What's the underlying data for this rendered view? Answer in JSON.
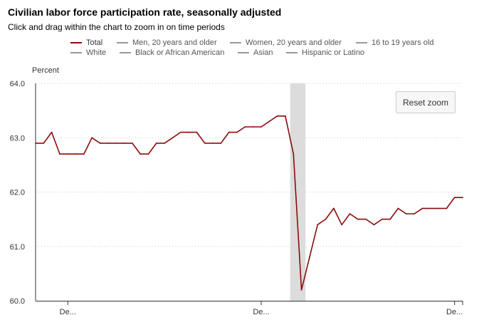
{
  "header": {
    "title": "Civilian labor force participation rate, seasonally adjusted",
    "subtitle": "Click and drag within the chart to zoom in on time periods"
  },
  "legend": {
    "items": [
      {
        "label": "Total",
        "color": "#8b0c0c",
        "active": true
      },
      {
        "label": "Men, 20 years and older",
        "color": "#999999",
        "active": false
      },
      {
        "label": "Women, 20 years and older",
        "color": "#999999",
        "active": false
      },
      {
        "label": "16 to 19 years old",
        "color": "#999999",
        "active": false
      },
      {
        "label": "White",
        "color": "#999999",
        "active": false
      },
      {
        "label": "Black or African American",
        "color": "#999999",
        "active": false
      },
      {
        "label": "Asian",
        "color": "#999999",
        "active": false
      },
      {
        "label": "Hispanic or Latino",
        "color": "#999999",
        "active": false
      }
    ]
  },
  "controls": {
    "reset_zoom_label": "Reset zoom"
  },
  "chart_data": {
    "type": "line",
    "title": "Civilian labor force participation rate, seasonally adjusted",
    "ylabel": "Percent",
    "xlabel": "",
    "ylim": [
      60.0,
      64.0
    ],
    "yticks": [
      "60.0",
      "61.0",
      "62.0",
      "63.0",
      "64.0"
    ],
    "xtick_labels": [
      {
        "index": 4,
        "label": "De..."
      },
      {
        "index": 28,
        "label": "De..."
      },
      {
        "index": 52,
        "label": "De..."
      }
    ],
    "grid": "horizontal dotted",
    "line_color": "#8b0c0c",
    "shaded_region": {
      "x_start": 31.6,
      "x_end": 33.5,
      "color": "#dcdcdc"
    },
    "series": [
      {
        "name": "Total",
        "x": [
          0,
          1,
          2,
          3,
          4,
          5,
          6,
          7,
          8,
          9,
          10,
          11,
          12,
          13,
          14,
          15,
          16,
          17,
          18,
          19,
          20,
          21,
          22,
          23,
          24,
          25,
          26,
          27,
          28,
          29,
          30,
          31,
          32,
          33,
          34,
          35,
          36,
          37,
          38,
          39,
          40,
          41,
          42,
          43,
          44,
          45,
          46,
          47,
          48,
          49,
          50,
          51,
          52,
          53
        ],
        "values": [
          62.9,
          62.9,
          63.1,
          62.7,
          62.7,
          62.7,
          62.7,
          63.0,
          62.9,
          62.9,
          62.9,
          62.9,
          62.9,
          62.7,
          62.7,
          62.9,
          62.9,
          63.0,
          63.1,
          63.1,
          63.1,
          62.9,
          62.9,
          62.9,
          63.1,
          63.1,
          63.2,
          63.2,
          63.2,
          63.3,
          63.4,
          63.4,
          62.7,
          60.2,
          60.8,
          61.4,
          61.5,
          61.7,
          61.4,
          61.6,
          61.5,
          61.5,
          61.4,
          61.5,
          61.5,
          61.7,
          61.6,
          61.6,
          61.7,
          61.7,
          61.7,
          61.7,
          61.9,
          61.9
        ]
      }
    ]
  }
}
